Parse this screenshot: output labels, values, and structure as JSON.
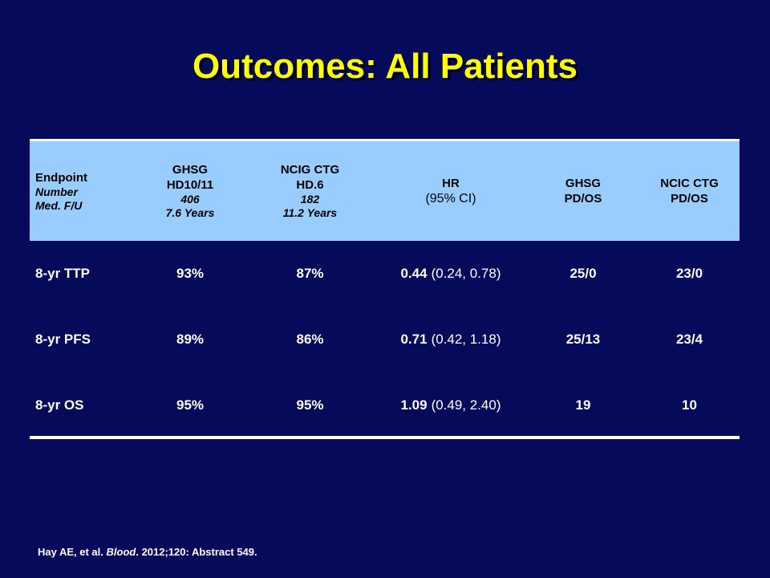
{
  "title": "Outcomes: All Patients",
  "header": {
    "endpoint": {
      "label": "Endpoint",
      "sub1": "Number",
      "sub2": "Med. F/U"
    },
    "ghsg": {
      "line1": "GHSG",
      "line2": "HD10/11",
      "number": "406",
      "followup": "7.6 Years"
    },
    "ncic": {
      "line1": "NCIG CTG",
      "line2": "HD.6",
      "number": "182",
      "followup": "11.2 Years"
    },
    "hr": {
      "line1": "HR",
      "line2": "(95% CI)"
    },
    "ghsg_pdos": {
      "line1": "GHSG",
      "line2": "PD/OS"
    },
    "ncic_pdos": {
      "line1": "NCIC CTG",
      "line2": "PD/OS"
    }
  },
  "rows": [
    {
      "endpoint": "8-yr TTP",
      "ghsg": "93%",
      "ncic": "87%",
      "hr": "0.44",
      "ci": "(0.24, 0.78)",
      "ghsg_pdos": "25/0",
      "ncic_pdos": "23/0"
    },
    {
      "endpoint": "8-yr PFS",
      "ghsg": "89%",
      "ncic": "86%",
      "hr": "0.71",
      "ci": "(0.42, 1.18)",
      "ghsg_pdos": "25/13",
      "ncic_pdos": "23/4"
    },
    {
      "endpoint": "8-yr OS",
      "ghsg": "95%",
      "ncic": "95%",
      "hr": "1.09",
      "ci": "(0.49, 2.40)",
      "ghsg_pdos": "19",
      "ncic_pdos": "10"
    }
  ],
  "citation": {
    "prefix": "Hay AE, et al.",
    "journal": "Blood",
    "suffix": ". 2012;120: Abstract 549."
  },
  "colors": {
    "background": "#050a5a",
    "title": "#ffff00",
    "header_bg": "#99ccff",
    "text": "#ffffff"
  }
}
